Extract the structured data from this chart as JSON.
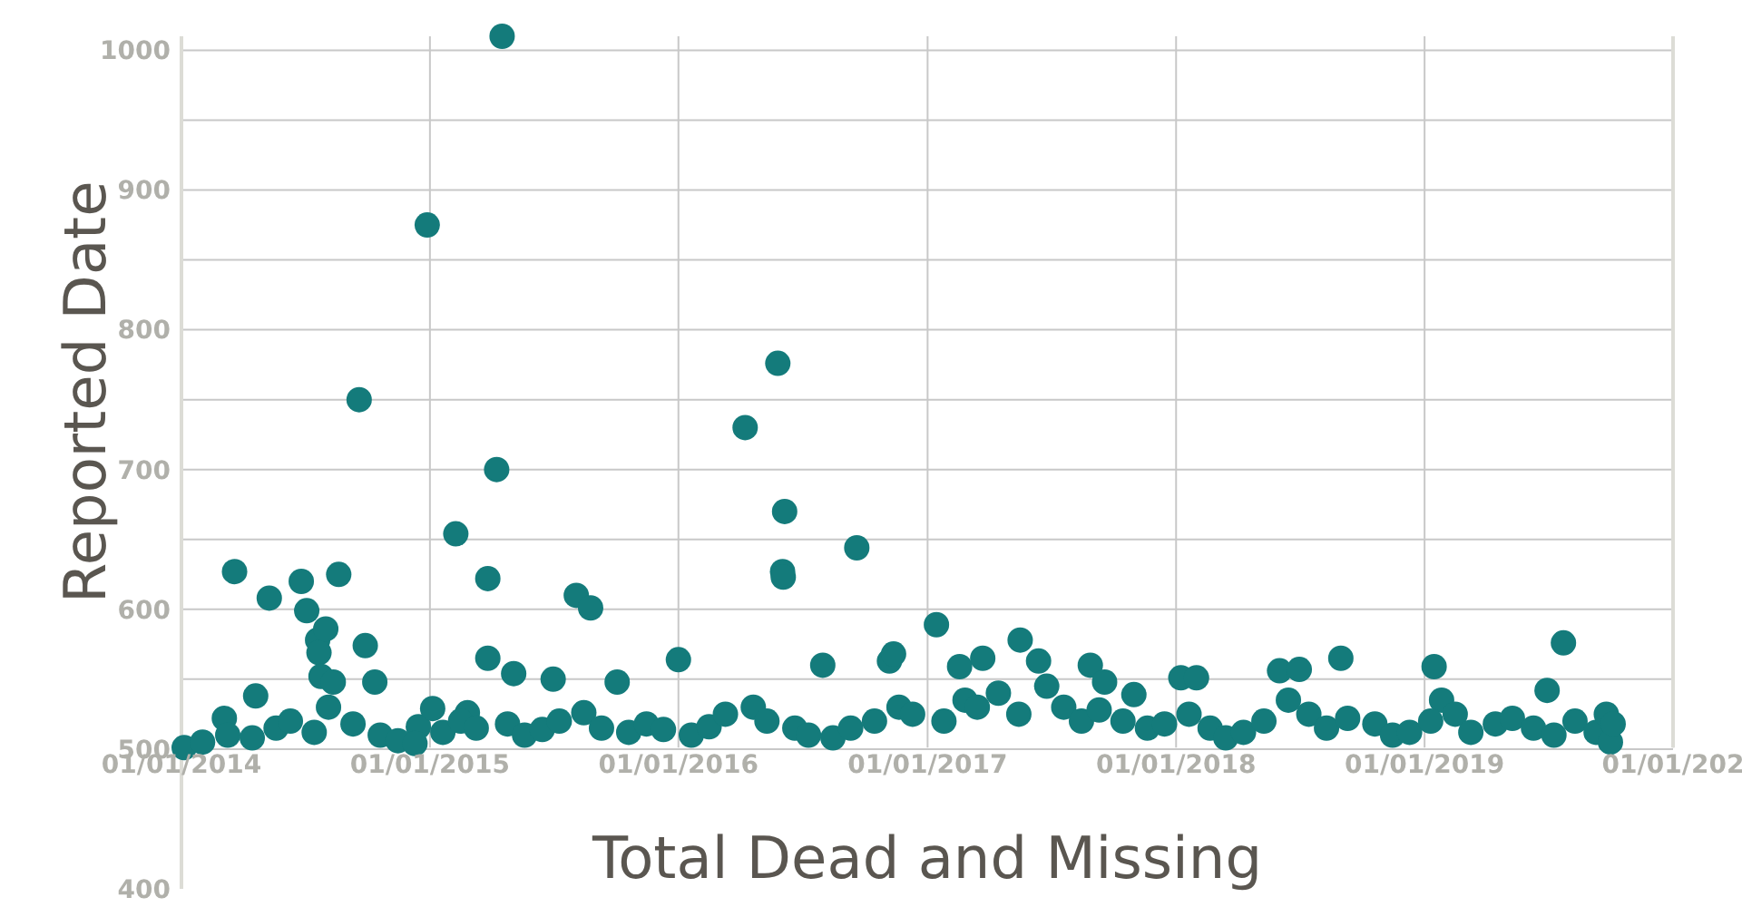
{
  "chart_data": {
    "type": "scatter",
    "xlabel": "Total Dead and Missing",
    "ylabel": "Reported Date",
    "xlim": [
      "2014-01-01",
      "2020-01-01"
    ],
    "xticks": [
      {
        "value": "2014-01-01",
        "label": "01/01/2014"
      },
      {
        "value": "2015-01-01",
        "label": "01/01/2015"
      },
      {
        "value": "2016-01-01",
        "label": "01/01/2016"
      },
      {
        "value": "2017-01-01",
        "label": "01/01/2017"
      },
      {
        "value": "2018-01-01",
        "label": "01/01/2018"
      },
      {
        "value": "2019-01-01",
        "label": "01/01/2019"
      },
      {
        "value": "2020-01-01",
        "label": "01/01/202"
      }
    ],
    "ylim": [
      400,
      1010
    ],
    "yticks": [
      400,
      500,
      600,
      700,
      800,
      900,
      1000
    ],
    "grid": true,
    "marker": "circle",
    "series": [
      {
        "color": "#147b7b",
        "x": [
          "2015-04-17",
          "2014-12-28",
          "2014-09-19",
          "2015-02-08",
          "2015-04-09",
          "2015-03-27",
          "2015-03-27",
          "2015-05-04",
          "2015-07-01",
          "2015-08-04",
          "2015-08-25",
          "2015-10-03",
          "2016-01-01",
          "2016-04-08",
          "2016-05-26",
          "2016-06-02",
          "2016-06-03",
          "2016-06-05",
          "2016-07-31",
          "2016-09-19",
          "2017-01-14",
          "2016-11-06",
          "2016-11-12",
          "2017-02-17",
          "2017-03-23",
          "2017-05-17",
          "2017-06-13",
          "2017-08-28",
          "2017-09-18",
          "2017-10-31",
          "2018-01-08",
          "2018-01-31",
          "2018-06-02",
          "2018-07-01",
          "2018-08-31",
          "2019-01-15",
          "2019-01-26",
          "2019-07-24",
          "2019-06-30",
          "2014-03-20",
          "2014-05-10",
          "2014-06-26",
          "2014-07-04",
          "2014-08-20",
          "2014-07-20",
          "2014-07-22",
          "2014-08-01",
          "2014-09-28",
          "2014-07-25",
          "2014-08-12",
          "2014-10-12",
          "2014-03-05",
          "2014-04-20",
          "2014-12-15",
          "2015-01-05",
          "2015-02-25",
          "2014-01-05",
          "2014-02-01",
          "2014-03-10",
          "2014-04-15",
          "2014-05-20",
          "2014-06-10",
          "2014-07-15",
          "2014-08-05",
          "2014-09-10",
          "2014-10-20",
          "2014-11-15",
          "2014-12-10",
          "2015-01-20",
          "2015-02-15",
          "2015-03-10",
          "2015-04-25",
          "2015-05-20",
          "2015-06-15",
          "2015-07-10",
          "2015-08-15",
          "2015-09-10",
          "2015-10-20",
          "2015-11-15",
          "2015-12-10",
          "2016-01-20",
          "2016-02-15",
          "2016-03-10",
          "2016-04-20",
          "2016-05-10",
          "2016-06-20",
          "2016-07-10",
          "2016-08-15",
          "2016-09-10",
          "2016-10-15",
          "2016-11-20",
          "2016-12-10",
          "2017-01-25",
          "2017-02-25",
          "2017-03-15",
          "2017-04-15",
          "2017-05-15",
          "2017-06-25",
          "2017-07-20",
          "2017-08-15",
          "2017-09-10",
          "2017-10-15",
          "2017-11-20",
          "2017-12-15",
          "2018-01-20",
          "2018-02-20",
          "2018-03-15",
          "2018-04-10",
          "2018-05-10",
          "2018-06-15",
          "2018-07-15",
          "2018-08-10",
          "2018-09-10",
          "2018-10-20",
          "2018-11-15",
          "2018-12-10",
          "2019-01-10",
          "2019-02-15",
          "2019-03-10",
          "2019-04-15",
          "2019-05-10",
          "2019-06-10",
          "2019-07-10",
          "2019-08-10",
          "2019-09-10",
          "2019-09-25",
          "2019-10-01",
          "2019-10-05"
        ],
        "values": [
          1010,
          875,
          750,
          654,
          700,
          622,
          565,
          554,
          550,
          610,
          601,
          548,
          564,
          730,
          776,
          627,
          623,
          670,
          560,
          644,
          589,
          563,
          568,
          559,
          565,
          578,
          563,
          560,
          548,
          539,
          551,
          551,
          556,
          557,
          565,
          559,
          535,
          576,
          542,
          627,
          608,
          620,
          599,
          625,
          578,
          569,
          586,
          574,
          552,
          548,
          548,
          522,
          538,
          516,
          529,
          526,
          501,
          505,
          510,
          508,
          515,
          520,
          512,
          530,
          518,
          510,
          506,
          504,
          512,
          520,
          515,
          518,
          510,
          514,
          520,
          526,
          515,
          512,
          518,
          514,
          510,
          516,
          525,
          530,
          520,
          515,
          510,
          508,
          515,
          520,
          530,
          525,
          520,
          535,
          530,
          540,
          525,
          545,
          530,
          520,
          528,
          520,
          515,
          518,
          525,
          515,
          508,
          512,
          520,
          535,
          525,
          515,
          522,
          518,
          510,
          512,
          520,
          525,
          512,
          518,
          522,
          515,
          510,
          520,
          512,
          525,
          505,
          518
        ]
      }
    ]
  }
}
